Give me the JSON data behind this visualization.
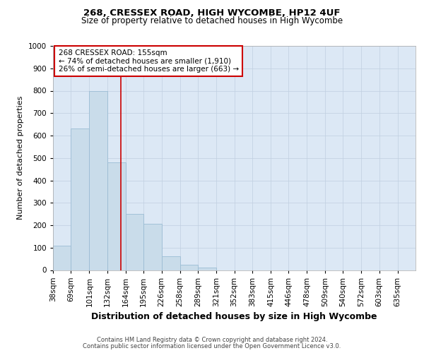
{
  "title_line1": "268, CRESSEX ROAD, HIGH WYCOMBE, HP12 4UF",
  "title_line2": "Size of property relative to detached houses in High Wycombe",
  "xlabel": "Distribution of detached houses by size in High Wycombe",
  "ylabel": "Number of detached properties",
  "footer_line1": "Contains HM Land Registry data © Crown copyright and database right 2024.",
  "footer_line2": "Contains public sector information licensed under the Open Government Licence v3.0.",
  "annotation_line1": "268 CRESSEX ROAD: 155sqm",
  "annotation_line2": "← 74% of detached houses are smaller (1,910)",
  "annotation_line3": "26% of semi-detached houses are larger (663) →",
  "bar_edges": [
    38,
    69,
    101,
    132,
    164,
    195,
    226,
    258,
    289,
    321,
    352,
    383,
    415,
    446,
    478,
    509,
    540,
    572,
    603,
    635,
    666
  ],
  "bar_heights": [
    110,
    630,
    800,
    480,
    250,
    205,
    60,
    25,
    10,
    0,
    0,
    0,
    0,
    0,
    0,
    0,
    0,
    0,
    0,
    0
  ],
  "bar_color": "#c9dcea",
  "bar_edgecolor": "#9bbcd4",
  "vline_color": "#cc0000",
  "vline_x": 155,
  "ylim": [
    0,
    1000
  ],
  "yticks": [
    0,
    100,
    200,
    300,
    400,
    500,
    600,
    700,
    800,
    900,
    1000
  ],
  "grid_color": "#c0cfe0",
  "plot_bg_color": "#dce8f5",
  "title_fontsize": 9.5,
  "subtitle_fontsize": 8.5,
  "ylabel_fontsize": 8,
  "xlabel_fontsize": 9,
  "tick_fontsize": 7.5,
  "footer_fontsize": 6,
  "ann_fontsize": 7.5
}
